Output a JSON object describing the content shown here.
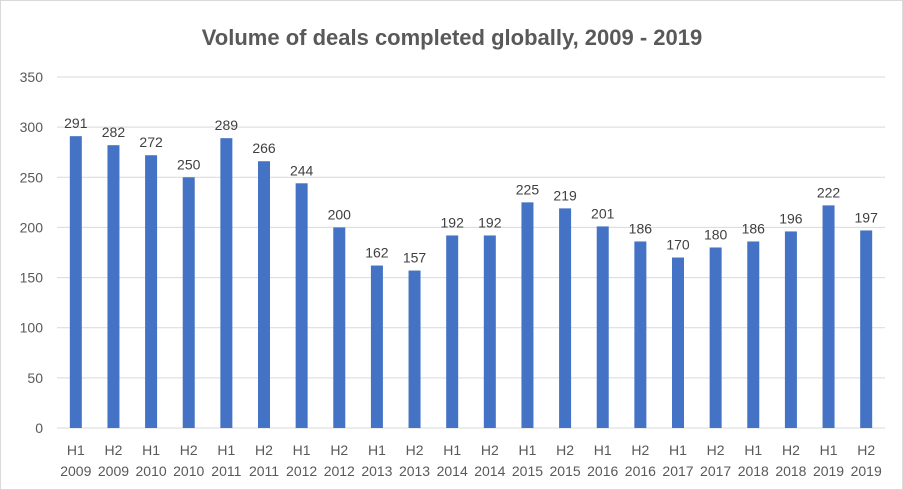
{
  "chart_data": {
    "type": "bar",
    "title": "Volume of deals completed globally, 2009 - 2019",
    "xlabel": "",
    "ylabel": "",
    "ylim": [
      0,
      350
    ],
    "yticks": [
      0,
      50,
      100,
      150,
      200,
      250,
      300,
      350
    ],
    "grid": true,
    "legend": "none",
    "bar_color": "#4472c4",
    "categories": [
      [
        "H1",
        "2009"
      ],
      [
        "H2",
        "2009"
      ],
      [
        "H1",
        "2010"
      ],
      [
        "H2",
        "2010"
      ],
      [
        "H1",
        "2011"
      ],
      [
        "H2",
        "2011"
      ],
      [
        "H1",
        "2012"
      ],
      [
        "H2",
        "2012"
      ],
      [
        "H1",
        "2013"
      ],
      [
        "H2",
        "2013"
      ],
      [
        "H1",
        "2014"
      ],
      [
        "H2",
        "2014"
      ],
      [
        "H1",
        "2015"
      ],
      [
        "H2",
        "2015"
      ],
      [
        "H1",
        "2016"
      ],
      [
        "H2",
        "2016"
      ],
      [
        "H1",
        "2017"
      ],
      [
        "H2",
        "2017"
      ],
      [
        "H1",
        "2018"
      ],
      [
        "H2",
        "2018"
      ],
      [
        "H1",
        "2019"
      ],
      [
        "H2",
        "2019"
      ]
    ],
    "values": [
      291,
      282,
      272,
      250,
      289,
      266,
      244,
      200,
      162,
      157,
      192,
      192,
      225,
      219,
      201,
      186,
      170,
      180,
      186,
      196,
      222,
      197
    ]
  }
}
